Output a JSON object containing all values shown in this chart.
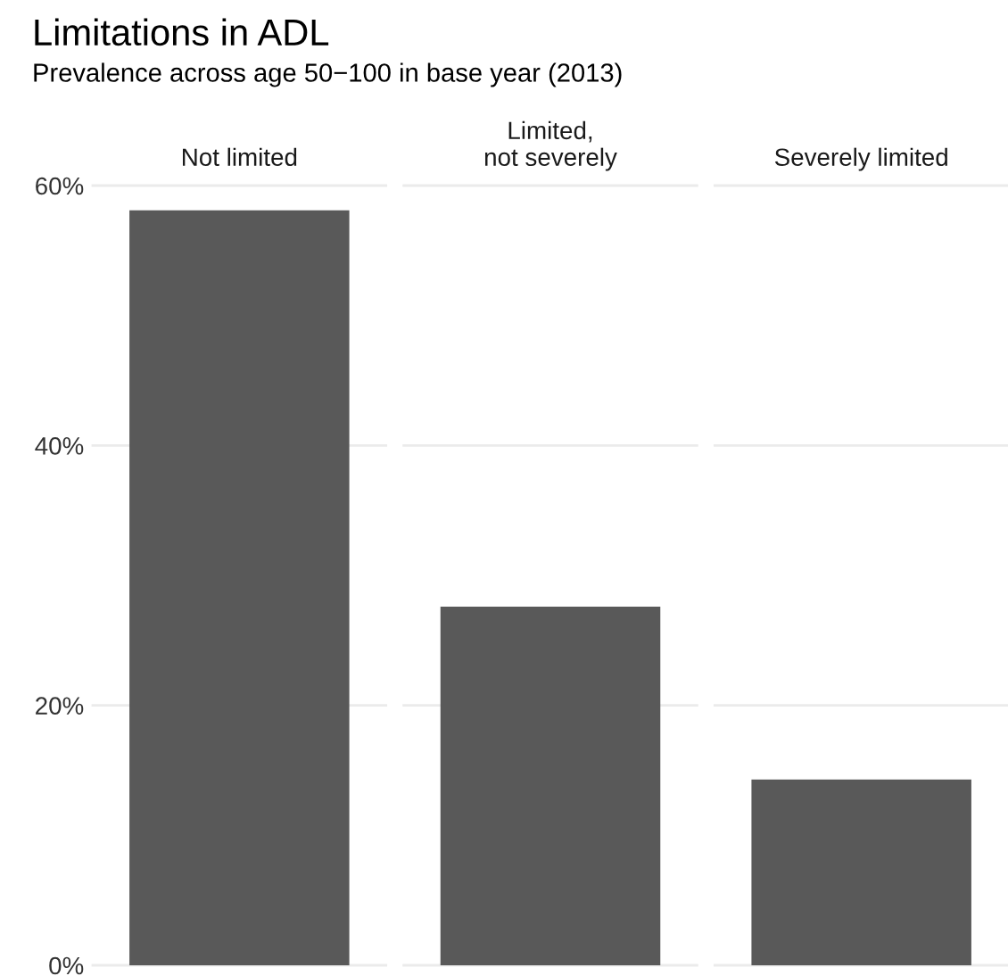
{
  "chart_data": {
    "type": "bar",
    "title": "Limitations in ADL",
    "subtitle": "Prevalence across age 50−100 in base year (2013)",
    "categories": [
      "Not limited",
      "Limited,\nnot severely",
      "Severely limited"
    ],
    "values": [
      58.1,
      27.6,
      14.3
    ],
    "color": "#595959",
    "ylim": [
      0,
      60
    ],
    "yticks": [
      {
        "value": 0,
        "label": "0%"
      },
      {
        "value": 20,
        "label": "20%"
      },
      {
        "value": 40,
        "label": "40%"
      },
      {
        "value": 60,
        "label": "60%"
      }
    ],
    "grid": "y"
  }
}
